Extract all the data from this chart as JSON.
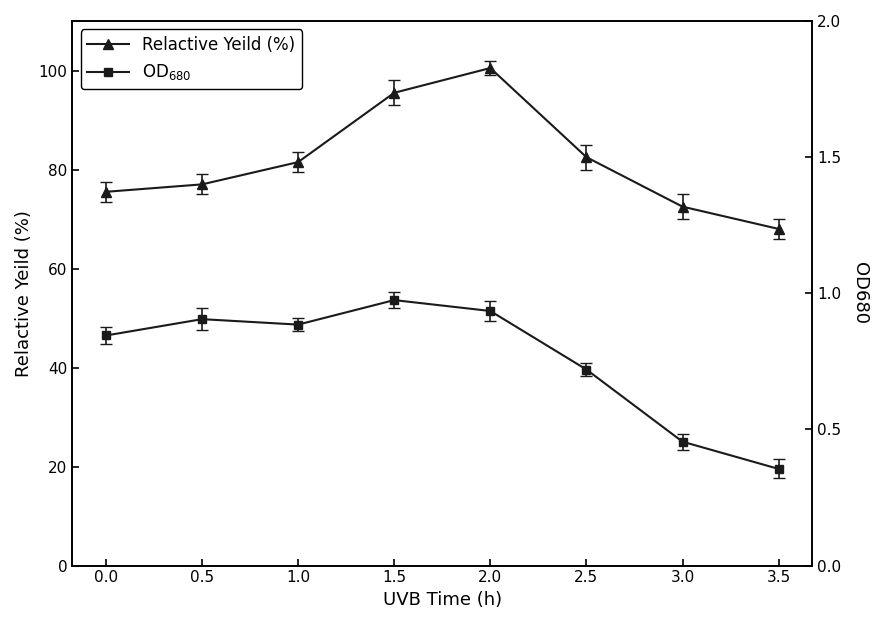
{
  "x": [
    0.0,
    0.5,
    1.0,
    1.5,
    2.0,
    2.5,
    3.0,
    3.5
  ],
  "yield_y": [
    75.5,
    77.0,
    81.5,
    95.5,
    100.5,
    82.5,
    72.5,
    68.0
  ],
  "yield_yerr": [
    2.0,
    2.0,
    2.0,
    2.5,
    1.5,
    2.5,
    2.5,
    2.0
  ],
  "od_y": [
    0.845,
    0.905,
    0.885,
    0.975,
    0.935,
    0.72,
    0.455,
    0.355
  ],
  "od_yerr": [
    0.03,
    0.04,
    0.025,
    0.03,
    0.035,
    0.025,
    0.03,
    0.035
  ],
  "xlabel": "UVB Time (h)",
  "ylabel_left": "Relactive Yeild (%)",
  "ylabel_right": "OD680",
  "legend_yield": "Relactive Yeild (%)",
  "legend_od": "OD",
  "legend_od_sub": "680",
  "ylim_left": [
    0,
    110
  ],
  "ylim_right": [
    0.0,
    2.0
  ],
  "yticks_left": [
    0,
    20,
    40,
    60,
    80,
    100
  ],
  "yticks_right": [
    0.0,
    0.5,
    1.0,
    1.5,
    2.0
  ],
  "xticks": [
    0.0,
    0.5,
    1.0,
    1.5,
    2.0,
    2.5,
    3.0,
    3.5
  ],
  "line_color": "#1a1a1a",
  "bg_color": "#ffffff"
}
